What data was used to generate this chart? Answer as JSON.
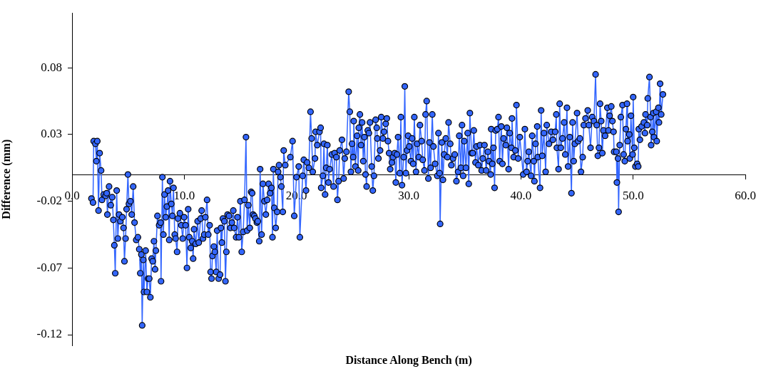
{
  "chart_data": {
    "type": "line",
    "xlabel": "Distance Along Bench (m)",
    "ylabel": "Difference (mm)",
    "marker": "circle",
    "color": "#3366ff",
    "xlim": [
      0,
      60
    ],
    "ylim": [
      -0.128,
      0.121
    ],
    "xticks": [
      {
        "value": 0,
        "label": "0.0"
      },
      {
        "value": 10,
        "label": "10.0"
      },
      {
        "value": 20,
        "label": "20.0"
      },
      {
        "value": 30,
        "label": "30.0"
      },
      {
        "value": 40,
        "label": "40.0"
      },
      {
        "value": 50,
        "label": "50.0"
      },
      {
        "value": 60,
        "label": "60.0"
      }
    ],
    "yticks": [
      -0.12,
      -0.07,
      -0.02,
      0.03,
      0.08
    ],
    "x": [
      1.73,
      1.87,
      1.93,
      2.08,
      2.17,
      2.25,
      2.36,
      2.46,
      2.59,
      2.67,
      2.82,
      2.99,
      3.09,
      3.15,
      3.3,
      3.45,
      3.58,
      3.68,
      3.77,
      3.85,
      3.98,
      4.08,
      4.19,
      4.31,
      4.48,
      4.59,
      4.67,
      4.77,
      4.86,
      4.98,
      5.07,
      5.2,
      5.32,
      5.45,
      5.57,
      5.72,
      5.87,
      5.99,
      6.08,
      6.18,
      6.25,
      6.35,
      6.41,
      6.56,
      6.67,
      6.77,
      6.88,
      6.98,
      7.09,
      7.19,
      7.3,
      7.4,
      7.47,
      7.61,
      7.76,
      7.89,
      7.93,
      8.05,
      8.14,
      8.24,
      8.35,
      8.45,
      8.56,
      8.66,
      8.73,
      8.85,
      8.94,
      9.04,
      9.15,
      9.23,
      9.36,
      9.44,
      9.61,
      9.74,
      9.86,
      9.99,
      10.12,
      10.24,
      10.35,
      10.45,
      10.58,
      10.71,
      10.79,
      10.87,
      11.02,
      11.19,
      11.29,
      11.46,
      11.55,
      11.67,
      11.78,
      11.88,
      12.03,
      12.14,
      12.26,
      12.35,
      12.43,
      12.51,
      12.64,
      12.72,
      12.85,
      12.93,
      13.06,
      13.19,
      13.27,
      13.35,
      13.44,
      13.57,
      13.67,
      13.75,
      13.86,
      13.99,
      14.11,
      14.24,
      14.37,
      14.45,
      14.62,
      14.74,
      14.87,
      15.0,
      15.12,
      15.25,
      15.37,
      15.5,
      15.6,
      15.71,
      15.84,
      15.96,
      16.05,
      16.13,
      16.24,
      16.34,
      16.47,
      16.55,
      16.68,
      16.76,
      16.89,
      17.01,
      17.14,
      17.27,
      17.39,
      17.52,
      17.65,
      17.77,
      17.86,
      17.94,
      18.02,
      18.15,
      18.28,
      18.36,
      18.44,
      18.57,
      18.65,
      18.78,
      18.86,
      19.0,
      19.45,
      19.65,
      19.8,
      20.0,
      20.2,
      20.3,
      20.55,
      20.65,
      20.85,
      20.95,
      21.1,
      21.25,
      21.35,
      21.45,
      21.65,
      21.7,
      21.85,
      22.05,
      22.15,
      22.2,
      22.35,
      22.45,
      22.55,
      22.65,
      22.75,
      22.85,
      22.95,
      23.15,
      23.3,
      23.4,
      23.55,
      23.65,
      23.75,
      23.85,
      24.05,
      24.2,
      24.3,
      24.45,
      24.65,
      24.75,
      24.85,
      24.95,
      25.05,
      25.1,
      25.25,
      25.4,
      25.5,
      25.55,
      25.65,
      25.75,
      25.85,
      25.95,
      26.05,
      26.15,
      26.25,
      26.35,
      26.45,
      26.55,
      26.7,
      26.8,
      26.9,
      27.05,
      27.15,
      27.2,
      27.3,
      27.45,
      27.55,
      27.7,
      27.8,
      27.95,
      28.05,
      28.15,
      28.25,
      28.35,
      28.5,
      28.6,
      28.75,
      28.85,
      28.95,
      29.05,
      29.2,
      29.3,
      29.4,
      29.55,
      29.65,
      29.75,
      29.85,
      29.95,
      30.05,
      30.2,
      30.3,
      30.4,
      30.5,
      30.65,
      30.75,
      30.9,
      31.0,
      31.15,
      31.25,
      31.4,
      31.5,
      31.6,
      31.75,
      31.85,
      31.95,
      32.1,
      32.2,
      32.35,
      32.55,
      32.65,
      32.75,
      32.8,
      32.95,
      33.05,
      33.15,
      33.3,
      33.45,
      33.55,
      33.7,
      33.8,
      33.95,
      34.1,
      34.25,
      34.4,
      34.5,
      34.65,
      34.75,
      34.85,
      34.95,
      35.1,
      35.25,
      35.35,
      35.45,
      35.6,
      35.7,
      35.8,
      35.95,
      36.05,
      36.2,
      36.35,
      36.5,
      36.6,
      36.75,
      36.9,
      37.05,
      37.15,
      37.3,
      37.35,
      37.45,
      37.55,
      37.65,
      37.75,
      37.9,
      38.0,
      38.1,
      38.25,
      38.35,
      38.45,
      38.65,
      38.75,
      38.9,
      39.0,
      39.15,
      39.2,
      39.35,
      39.5,
      39.6,
      39.75,
      39.9,
      40.2,
      40.35,
      40.5,
      40.6,
      40.7,
      40.9,
      41.0,
      41.15,
      41.2,
      41.3,
      41.45,
      41.5,
      41.7,
      41.8,
      41.9,
      42.05,
      42.2,
      42.3,
      42.5,
      42.7,
      42.85,
      43.05,
      43.15,
      43.2,
      43.35,
      43.45,
      43.55,
      43.7,
      43.85,
      43.95,
      44.1,
      44.2,
      44.35,
      44.5,
      44.6,
      44.7,
      44.8,
      45.0,
      45.1,
      45.25,
      45.35,
      45.5,
      45.6,
      45.75,
      45.95,
      46.05,
      46.2,
      46.35,
      46.5,
      46.65,
      46.75,
      46.85,
      46.95,
      47.05,
      47.15,
      47.25,
      47.35,
      47.5,
      47.7,
      47.8,
      47.9,
      48.05,
      48.15,
      48.25,
      48.3,
      48.5,
      48.55,
      48.65,
      48.7,
      48.8,
      48.9,
      49.05,
      49.15,
      49.25,
      49.35,
      49.45,
      49.5,
      49.65,
      49.7,
      49.8,
      49.95,
      50.0,
      50.1,
      50.2,
      50.35,
      50.45,
      50.5,
      50.6,
      50.75,
      50.95,
      51.05,
      51.1,
      51.25,
      51.3,
      51.45,
      51.55,
      51.6,
      51.7,
      51.8,
      51.85,
      52.05,
      52.1,
      52.25,
      52.3,
      52.4,
      52.5,
      52.65
    ],
    "values": [
      -0.018,
      -0.021,
      0.025,
      0.023,
      0.01,
      0.025,
      -0.027,
      0.016,
      0.003,
      -0.019,
      -0.015,
      -0.016,
      -0.014,
      -0.03,
      -0.009,
      -0.023,
      -0.017,
      -0.034,
      -0.053,
      -0.074,
      -0.012,
      -0.048,
      -0.03,
      -0.035,
      -0.032,
      -0.04,
      -0.065,
      -0.048,
      -0.026,
      0.0,
      -0.022,
      -0.02,
      -0.03,
      -0.009,
      -0.036,
      -0.049,
      -0.047,
      -0.056,
      -0.074,
      -0.06,
      -0.113,
      -0.064,
      -0.088,
      -0.057,
      -0.088,
      -0.078,
      -0.078,
      -0.092,
      -0.063,
      -0.065,
      -0.05,
      -0.071,
      -0.057,
      -0.031,
      -0.038,
      -0.036,
      -0.08,
      -0.002,
      -0.045,
      -0.015,
      -0.032,
      -0.024,
      -0.012,
      -0.049,
      -0.005,
      -0.022,
      -0.031,
      -0.01,
      -0.045,
      -0.048,
      -0.058,
      -0.033,
      -0.029,
      -0.038,
      -0.048,
      -0.032,
      -0.038,
      -0.07,
      -0.026,
      -0.047,
      -0.055,
      -0.05,
      -0.063,
      -0.041,
      -0.052,
      -0.035,
      -0.051,
      -0.033,
      -0.027,
      -0.048,
      -0.045,
      -0.032,
      -0.019,
      -0.045,
      -0.038,
      -0.073,
      -0.078,
      -0.061,
      -0.054,
      -0.058,
      -0.073,
      -0.042,
      -0.078,
      -0.075,
      -0.04,
      -0.051,
      -0.033,
      -0.035,
      -0.08,
      -0.058,
      -0.03,
      -0.031,
      -0.04,
      -0.036,
      -0.027,
      -0.04,
      -0.047,
      -0.032,
      -0.047,
      -0.02,
      -0.058,
      -0.043,
      -0.019,
      0.028,
      -0.042,
      -0.023,
      -0.04,
      -0.013,
      -0.014,
      -0.03,
      -0.031,
      -0.033,
      -0.036,
      -0.035,
      -0.05,
      0.004,
      -0.045,
      -0.007,
      -0.02,
      -0.03,
      -0.019,
      -0.007,
      -0.014,
      -0.01,
      -0.047,
      0.004,
      -0.025,
      -0.04,
      -0.028,
      0.002,
      0.007,
      -0.002,
      -0.009,
      -0.028,
      0.018,
      0.007,
      0.013,
      0.025,
      -0.031,
      -0.002,
      0.006,
      -0.047,
      -0.001,
      0.011,
      -0.012,
      0.009,
      0.005,
      0.047,
      0.027,
      0.002,
      0.012,
      0.032,
      0.022,
      0.032,
      0.035,
      -0.01,
      -0.001,
      0.023,
      -0.015,
      0.005,
      0.022,
      -0.006,
      0.004,
      0.015,
      -0.009,
      0.016,
      0.013,
      -0.019,
      -0.005,
      0.018,
      0.026,
      -0.003,
      0.012,
      0.017,
      0.062,
      0.047,
      0.002,
      0.023,
      0.013,
      0.04,
      0.006,
      0.029,
      0.003,
      0.035,
      0.045,
      0.022,
      0.039,
      0.01,
      0.028,
      0.0,
      -0.009,
      0.033,
      0.031,
      0.039,
      0.006,
      -0.012,
      -0.001,
      0.041,
      0.035,
      0.027,
      0.012,
      0.018,
      0.043,
      0.027,
      0.032,
      0.038,
      0.042,
      0.025,
      0.016,
      0.004,
      0.009,
      0.013,
      0.016,
      -0.006,
      0.015,
      0.028,
      0.001,
      0.043,
      -0.008,
      0.013,
      0.066,
      0.001,
      0.018,
      0.029,
      0.021,
      0.01,
      0.027,
      0.008,
      0.043,
      0.002,
      0.023,
      0.013,
      0.037,
      0.025,
      0.011,
      0.003,
      0.045,
      0.055,
      -0.003,
      0.024,
      0.005,
      0.045,
      0.021,
      0.008,
      -0.001,
      0.031,
      0.001,
      -0.037,
      0.024,
      -0.004,
      0.015,
      0.027,
      0.013,
      0.039,
      0.023,
      0.007,
      0.012,
      0.015,
      -0.005,
      0.002,
      0.029,
      0.005,
      0.037,
      -0.001,
      0.025,
      0.005,
      0.031,
      -0.007,
      0.046,
      0.016,
      0.016,
      0.033,
      0.009,
      0.021,
      0.007,
      0.022,
      0.003,
      0.012,
      0.022,
      0.003,
      0.017,
      0.01,
      0.0,
      0.034,
      0.008,
      0.02,
      -0.01,
      0.033,
      0.034,
      0.043,
      0.01,
      0.036,
      0.008,
      0.027,
      0.022,
      0.035,
      0.004,
      0.031,
      0.02,
      0.042,
      0.013,
      0.018,
      0.052,
      0.012,
      0.028,
      0.0,
      0.034,
      0.002,
      0.01,
      0.017,
      -0.001,
      0.029,
      0.01,
      -0.005,
      0.023,
      0.036,
      0.013,
      -0.01,
      0.048,
      0.014,
      0.031,
      0.002,
      0.037,
      0.023,
      0.032,
      0.026,
      0.032,
      0.045,
      0.02,
      0.004,
      0.053,
      0.02,
      0.027,
      0.039,
      0.015,
      0.05,
      0.006,
      0.028,
      -0.014,
      0.039,
      0.01,
      0.023,
      0.046,
      0.025,
      0.027,
      0.002,
      0.013,
      0.037,
      0.042,
      0.048,
      0.037,
      0.02,
      0.043,
      0.04,
      0.075,
      0.037,
      0.014,
      0.02,
      0.053,
      0.04,
      0.016,
      0.033,
      0.029,
      0.05,
      0.033,
      0.044,
      0.051,
      0.04,
      0.032,
      0.017,
      0.017,
      -0.006,
      0.012,
      -0.028,
      0.022,
      0.043,
      0.052,
      0.015,
      0.01,
      0.034,
      0.053,
      0.025,
      0.03,
      0.012,
      0.044,
      0.015,
      0.058,
      0.02,
      0.006,
      0.008,
      0.006,
      0.034,
      0.026,
      0.036,
      0.039,
      0.031,
      0.045,
      0.037,
      0.057,
      0.073,
      0.043,
      0.022,
      0.032,
      0.046,
      0.028,
      0.047,
      0.025,
      0.05,
      0.039,
      0.068,
      0.045,
      0.06
    ]
  }
}
